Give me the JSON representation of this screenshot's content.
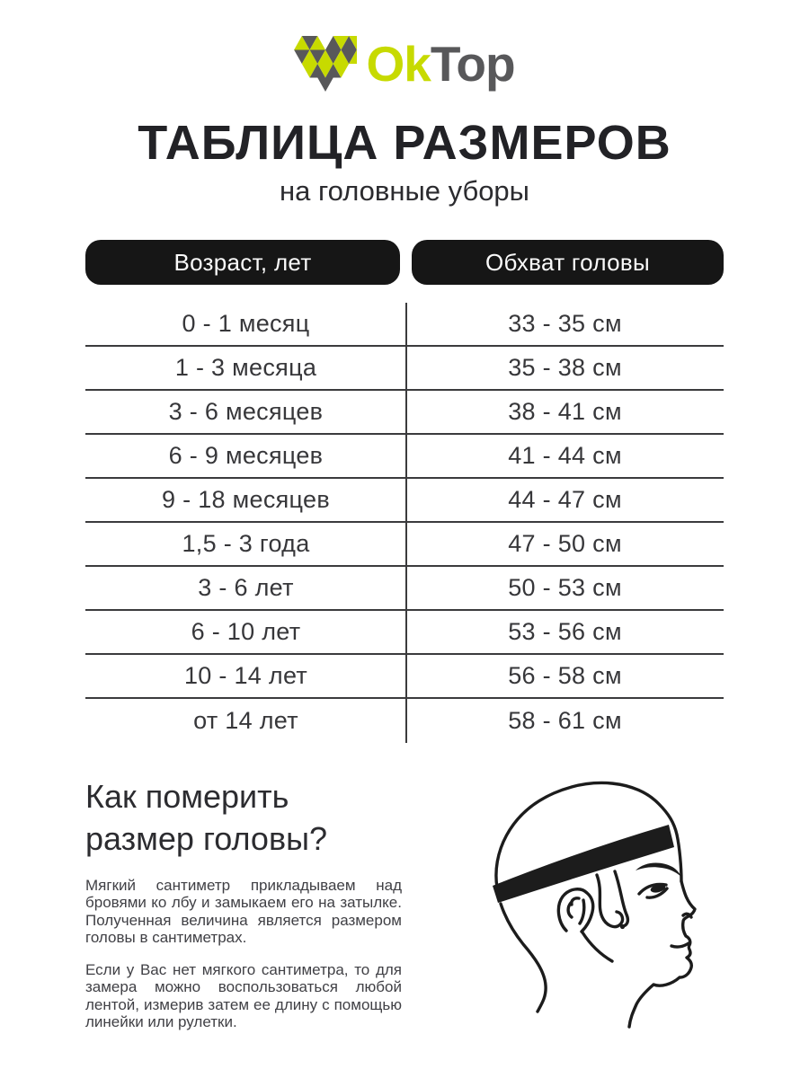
{
  "colors": {
    "lime": "#c7da00",
    "logo_gray": "#58585a",
    "ink": "#222226",
    "pill_bg": "#161616",
    "table_line": "#3b3b3d",
    "body_text": "#404045"
  },
  "logo": {
    "ok": "Ok",
    "top": "Top"
  },
  "title": "ТАБЛИЦА РАЗМЕРОВ",
  "subtitle": "на головные уборы",
  "table": {
    "col1_header": "Возраст, лет",
    "col2_header": "Обхват головы",
    "rows": [
      {
        "age": "0 - 1 месяц",
        "size": "33 - 35 см"
      },
      {
        "age": "1 - 3 месяца",
        "size": "35 - 38 см"
      },
      {
        "age": "3 - 6 месяцев",
        "size": "38 - 41 см"
      },
      {
        "age": "6 - 9 месяцев",
        "size": "41 - 44 см"
      },
      {
        "age": "9 - 18 месяцев",
        "size": "44 - 47 см"
      },
      {
        "age": "1,5 - 3 года",
        "size": "47 - 50 см"
      },
      {
        "age": "3 - 6 лет",
        "size": "50 - 53 см"
      },
      {
        "age": "6 - 10 лет",
        "size": "53 - 56 см"
      },
      {
        "age": "10 - 14 лет",
        "size": "56 - 58 см"
      },
      {
        "age": "от 14 лет",
        "size": "58 - 61 см"
      }
    ]
  },
  "how_to": {
    "heading": "Как померить размер головы?",
    "paragraph1": "Мягкий сантиметр прикладываем над бровями ко лбу и замыкаем его на затылке. Полученная величина является размером головы в сантиметрах.",
    "paragraph2": "Если у Вас нет мягкого сантиметра, то для замера можно воспользоваться любой лентой, измерив затем ее длину с помощью линейки или рулетки."
  }
}
